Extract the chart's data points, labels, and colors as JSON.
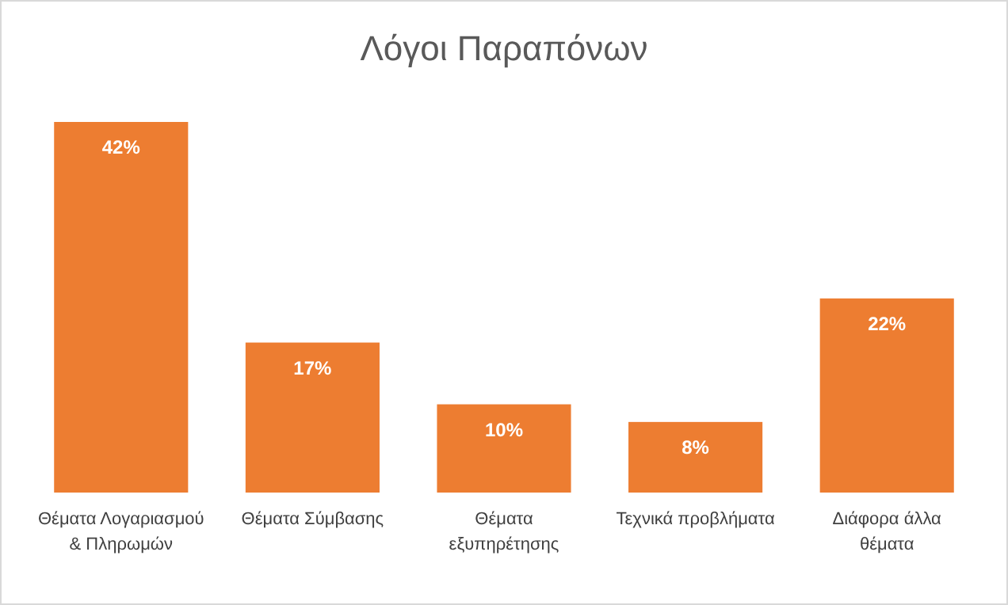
{
  "chart_data": {
    "type": "bar",
    "title": "Λόγοι Παραπόνων",
    "categories": [
      "Θέματα Λογαριασμού & Πληρωμών",
      "Θέματα Σύμβασης",
      "Θέματα εξυπηρέτησης",
      "Τεχνικά προβλήματα",
      "Διάφορα άλλα θέματα"
    ],
    "values": [
      42,
      17,
      10,
      8,
      22
    ],
    "value_labels": [
      "42%",
      "17%",
      "10%",
      "8%",
      "22%"
    ],
    "color": "#ed7d31"
  }
}
